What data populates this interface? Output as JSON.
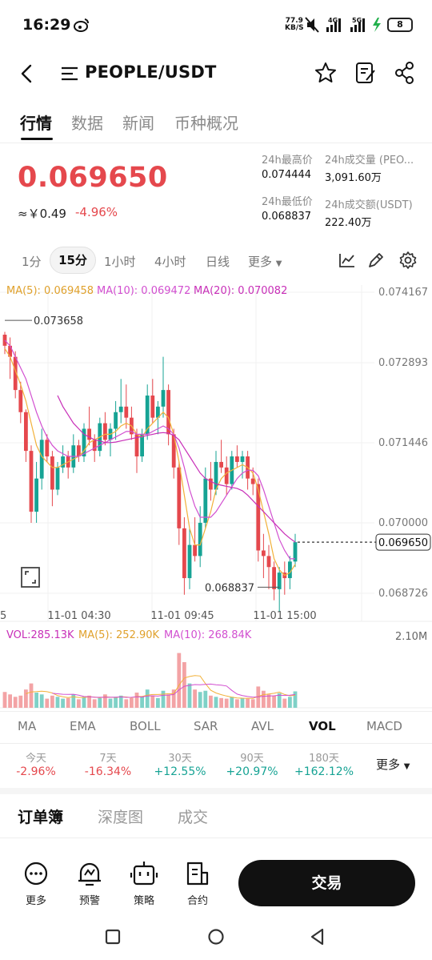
{
  "status_bar": {
    "time": "16:29",
    "net_speed_top": "77.9",
    "net_speed_bottom": "KB/S",
    "battery": "8",
    "signal_1": "4G",
    "signal_2": "5G"
  },
  "header": {
    "pair": "PEOPLE/USDT"
  },
  "tabs": [
    "行情",
    "数据",
    "新闻",
    "币种概况"
  ],
  "ticker": {
    "price": "0.069650",
    "cny": "≈￥0.49",
    "change_pct": "-4.96%",
    "high_label": "24h最高价",
    "high_value": "0.074444",
    "low_label": "24h最低价",
    "low_value": "0.068837",
    "vol_label": "24h成交量 (PEO...",
    "vol_value": "3,091.60万",
    "amount_label": "24h成交额(USDT)",
    "amount_value": "222.40万"
  },
  "intervals": [
    "1分",
    "15分",
    "1小时",
    "4小时",
    "日线",
    "更多"
  ],
  "active_interval": "15分",
  "ma_legend": {
    "ma5": "MA(5): 0.069458",
    "ma10": "MA(10): 0.069472",
    "ma20": "MA(20): 0.070082"
  },
  "vol_legend": {
    "vol": "VOL:285.13K",
    "ma5": "MA(5): 252.90K",
    "ma10": "MA(10): 268.84K",
    "max": "2.10M"
  },
  "colors": {
    "up": "#16a394",
    "down": "#e5484d",
    "ma5": "#f2b13a",
    "ma10": "#d24fd0",
    "ma20": "#c82fb8"
  },
  "chart_data": {
    "type": "candlestick",
    "y_ticks": [
      "0.074167",
      "0.072893",
      "0.071446",
      "0.070000",
      "0.068726"
    ],
    "x_ticks": [
      "5",
      "11-01 04:30",
      "11-01 09:45",
      "11-01 15:00"
    ],
    "ylim": [
      0.068726,
      0.074167
    ],
    "annotations": {
      "high": "0.073658",
      "low": "0.068837",
      "last": "0.069650"
    },
    "candles": [
      [
        0.0734,
        0.07345,
        0.07305,
        0.0732
      ],
      [
        0.0732,
        0.07335,
        0.0726,
        0.073
      ],
      [
        0.073,
        0.0731,
        0.07225,
        0.0724
      ],
      [
        0.0724,
        0.07255,
        0.0718,
        0.072
      ],
      [
        0.072,
        0.07205,
        0.0711,
        0.0713
      ],
      [
        0.0713,
        0.0714,
        0.07,
        0.0702
      ],
      [
        0.0702,
        0.0711,
        0.07,
        0.0708
      ],
      [
        0.0708,
        0.0717,
        0.0706,
        0.0715
      ],
      [
        0.0715,
        0.0716,
        0.0711,
        0.0712
      ],
      [
        0.0712,
        0.0713,
        0.0703,
        0.0706
      ],
      [
        0.0706,
        0.0711,
        0.0705,
        0.071
      ],
      [
        0.071,
        0.0714,
        0.0709,
        0.0712
      ],
      [
        0.0712,
        0.0713,
        0.0708,
        0.071
      ],
      [
        0.071,
        0.0716,
        0.0709,
        0.0714
      ],
      [
        0.0714,
        0.0715,
        0.0711,
        0.0712
      ],
      [
        0.0712,
        0.0718,
        0.0711,
        0.0717
      ],
      [
        0.0717,
        0.0721,
        0.0714,
        0.0715
      ],
      [
        0.0715,
        0.0716,
        0.0711,
        0.0713
      ],
      [
        0.0713,
        0.0719,
        0.0712,
        0.0718
      ],
      [
        0.0718,
        0.072,
        0.0714,
        0.0715
      ],
      [
        0.0715,
        0.0718,
        0.0712,
        0.0717
      ],
      [
        0.0717,
        0.0722,
        0.0715,
        0.072
      ],
      [
        0.072,
        0.0726,
        0.0718,
        0.0721
      ],
      [
        0.0721,
        0.0725,
        0.0717,
        0.0719
      ],
      [
        0.0719,
        0.0721,
        0.0715,
        0.0716
      ],
      [
        0.0716,
        0.0717,
        0.0709,
        0.0712
      ],
      [
        0.0712,
        0.0717,
        0.0711,
        0.0716
      ],
      [
        0.0716,
        0.0725,
        0.0715,
        0.0723
      ],
      [
        0.0723,
        0.0726,
        0.0718,
        0.0719
      ],
      [
        0.0719,
        0.0722,
        0.0716,
        0.0721
      ],
      [
        0.0721,
        0.073,
        0.0719,
        0.0724
      ],
      [
        0.0724,
        0.0725,
        0.0714,
        0.0716
      ],
      [
        0.0716,
        0.0717,
        0.0708,
        0.071
      ],
      [
        0.071,
        0.0711,
        0.0696,
        0.0699
      ],
      [
        0.0699,
        0.0701,
        0.0687,
        0.069
      ],
      [
        0.069,
        0.0699,
        0.0688,
        0.0696
      ],
      [
        0.0696,
        0.0701,
        0.0693,
        0.0694
      ],
      [
        0.0694,
        0.0703,
        0.0692,
        0.07
      ],
      [
        0.07,
        0.071,
        0.0699,
        0.0708
      ],
      [
        0.0708,
        0.0711,
        0.0704,
        0.0706
      ],
      [
        0.0706,
        0.0713,
        0.0705,
        0.0711
      ],
      [
        0.0711,
        0.0715,
        0.0709,
        0.071
      ],
      [
        0.071,
        0.0712,
        0.0705,
        0.0707
      ],
      [
        0.0707,
        0.0713,
        0.0706,
        0.0712
      ],
      [
        0.0712,
        0.0714,
        0.071,
        0.0711
      ],
      [
        0.0711,
        0.0713,
        0.0708,
        0.0712
      ],
      [
        0.0712,
        0.0713,
        0.0706,
        0.0708
      ],
      [
        0.0708,
        0.071,
        0.0705,
        0.0707
      ],
      [
        0.0707,
        0.0708,
        0.0693,
        0.0695
      ],
      [
        0.0695,
        0.0698,
        0.069,
        0.0694
      ],
      [
        0.0694,
        0.0696,
        0.0688,
        0.0692
      ],
      [
        0.0692,
        0.0693,
        0.0686,
        0.0688
      ],
      [
        0.0688,
        0.0692,
        0.0684,
        0.0691
      ],
      [
        0.0691,
        0.0693,
        0.0687,
        0.069
      ],
      [
        0.069,
        0.0694,
        0.0688,
        0.0693
      ],
      [
        0.0693,
        0.0698,
        0.0692,
        0.06965
      ]
    ],
    "volumes": [
      0.26,
      0.22,
      0.18,
      0.2,
      0.3,
      0.4,
      0.25,
      0.22,
      0.15,
      0.2,
      0.18,
      0.15,
      0.16,
      0.22,
      0.14,
      0.18,
      0.2,
      0.14,
      0.16,
      0.22,
      0.15,
      0.18,
      0.2,
      0.14,
      0.16,
      0.25,
      0.18,
      0.3,
      0.2,
      0.16,
      0.28,
      0.22,
      0.3,
      0.9,
      0.75,
      0.4,
      0.3,
      0.26,
      0.28,
      0.2,
      0.18,
      0.16,
      0.15,
      0.18,
      0.14,
      0.16,
      0.15,
      0.14,
      0.35,
      0.28,
      0.22,
      0.2,
      0.24,
      0.15,
      0.18,
      0.27
    ],
    "ma5": [
      0.07315,
      0.073,
      0.07275,
      0.0725,
      0.0722,
      0.0718,
      0.0714,
      0.0712,
      0.0711,
      0.071,
      0.071,
      0.07105,
      0.0711,
      0.07115,
      0.0712,
      0.0713,
      0.07145,
      0.0715,
      0.07155,
      0.0716,
      0.0716,
      0.07165,
      0.07175,
      0.0718,
      0.07175,
      0.0716,
      0.07155,
      0.0717,
      0.0718,
      0.0719,
      0.072,
      0.0719,
      0.0716,
      0.0711,
      0.0705,
      0.0699,
      0.0696,
      0.0696,
      0.0699,
      0.0702,
      0.0706,
      0.0708,
      0.0709,
      0.07095,
      0.071,
      0.07105,
      0.071,
      0.0709,
      0.0706,
      0.0702,
      0.0698,
      0.06935,
      0.06915,
      0.06905,
      0.0691,
      0.06925
    ],
    "ma10": [
      0.0733,
      0.0732,
      0.073,
      0.0728,
      0.0726,
      0.0723,
      0.072,
      0.07175,
      0.07155,
      0.0714,
      0.0713,
      0.07125,
      0.0712,
      0.0712,
      0.0712,
      0.07125,
      0.0713,
      0.07135,
      0.0714,
      0.07145,
      0.0715,
      0.07155,
      0.0716,
      0.07165,
      0.07165,
      0.0716,
      0.0716,
      0.0716,
      0.07165,
      0.0717,
      0.07175,
      0.0717,
      0.0716,
      0.07135,
      0.071,
      0.0706,
      0.0703,
      0.0701,
      0.0701,
      0.0701,
      0.0702,
      0.07035,
      0.0705,
      0.07065,
      0.0708,
      0.0709,
      0.07095,
      0.07095,
      0.07085,
      0.0706,
      0.0703,
      0.07,
      0.0697,
      0.0695,
      0.06935,
      0.06935
    ],
    "ma20": [
      null,
      null,
      null,
      null,
      null,
      null,
      null,
      null,
      null,
      null,
      0.0723,
      0.0721,
      0.07195,
      0.0718,
      0.0717,
      0.0716,
      0.07155,
      0.0715,
      0.07148,
      0.07145,
      0.07145,
      0.07146,
      0.07148,
      0.0715,
      0.07152,
      0.07154,
      0.07156,
      0.07158,
      0.0716,
      0.07162,
      0.07163,
      0.07162,
      0.07158,
      0.0715,
      0.07135,
      0.0712,
      0.07105,
      0.0709,
      0.0708,
      0.07075,
      0.0707,
      0.07068,
      0.07066,
      0.07064,
      0.07062,
      0.07058,
      0.0705,
      0.0704,
      0.0703,
      0.0702,
      0.0701,
      0.07,
      0.0699,
      0.0698,
      0.06972,
      0.06965
    ]
  },
  "indicators": [
    "MA",
    "EMA",
    "BOLL",
    "SAR",
    "AVL",
    "VOL",
    "MACD"
  ],
  "active_indicator": "VOL",
  "performance": [
    {
      "label": "今天",
      "value": "-2.96%",
      "dir": "down"
    },
    {
      "label": "7天",
      "value": "-16.34%",
      "dir": "down"
    },
    {
      "label": "30天",
      "value": "+12.55%",
      "dir": "up"
    },
    {
      "label": "90天",
      "value": "+20.97%",
      "dir": "up"
    },
    {
      "label": "180天",
      "value": "+162.12%",
      "dir": "up"
    }
  ],
  "perf_more": "更多",
  "orderbook_tabs": [
    "订单簿",
    "深度图",
    "成交"
  ],
  "bottom": {
    "more": "更多",
    "alert": "预警",
    "strategy": "策略",
    "contract": "合约",
    "trade": "交易"
  }
}
